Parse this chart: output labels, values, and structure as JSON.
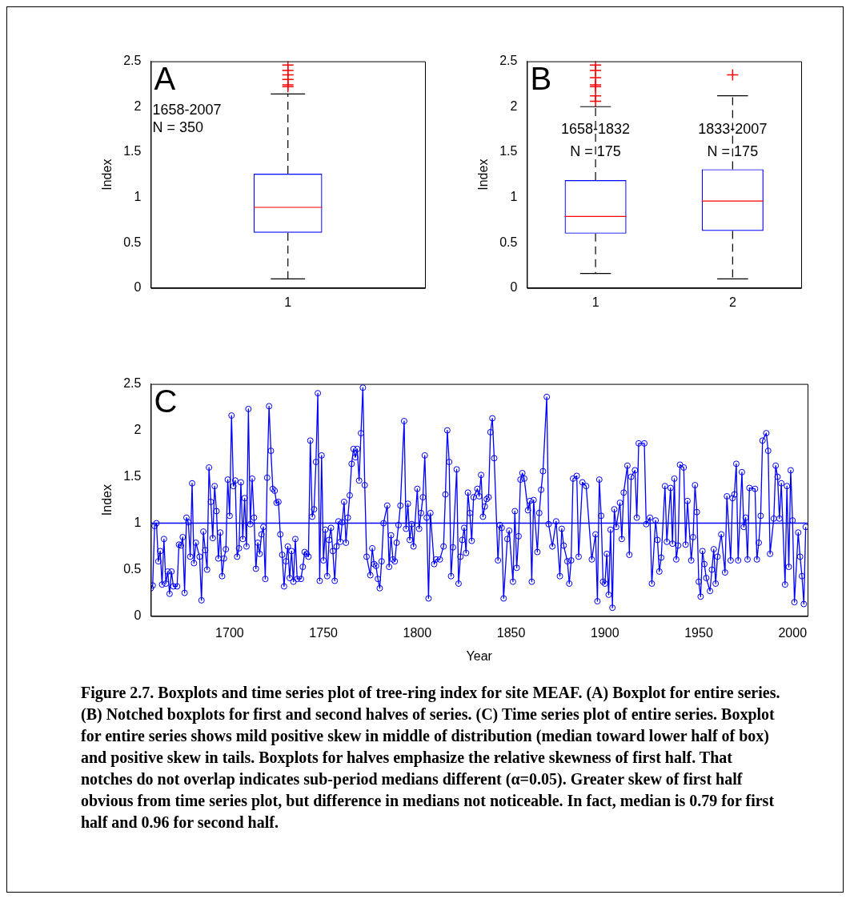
{
  "chart_data": [
    {
      "type": "box",
      "categories": [
        "1"
      ],
      "ylabel": "Index",
      "ylim": [
        0,
        2.5
      ],
      "yticks": [
        0,
        0.5,
        1,
        1.5,
        2,
        2.5
      ],
      "annotations": [
        "A",
        "1658-2007",
        "N = 350"
      ],
      "series": [
        {
          "color": "#0000ff",
          "boxes": [
            {
              "low": 0.1,
              "q1": 0.61,
              "median": 0.89,
              "q3": 1.26,
              "high": 2.14,
              "outliers": [
                2.22,
                2.24,
                2.3,
                2.35,
                2.4,
                2.46
              ]
            }
          ]
        }
      ]
    },
    {
      "type": "box",
      "categories": [
        "1",
        "2"
      ],
      "ylabel": "Index",
      "ylim": [
        0,
        2.5
      ],
      "yticks": [
        0,
        0.5,
        1,
        1.5,
        2,
        2.5
      ],
      "annotations": [
        "B",
        {
          "text": "1658-1832",
          "x": "1",
          "y": 1.75
        },
        {
          "text": "N = 175",
          "x": "1",
          "y": 1.5
        },
        {
          "text": "1833-2007",
          "x": "2",
          "y": 1.75
        },
        {
          "text": "N = 175",
          "x": "2",
          "y": 1.5
        }
      ],
      "series": [
        {
          "color": "#0000ff",
          "boxes": [
            {
              "low": 0.16,
              "q1": 0.6,
              "median": 0.79,
              "q3": 1.19,
              "high": 2.0,
              "outliers": [
                2.06,
                2.12,
                2.22,
                2.24,
                2.32,
                2.4,
                2.46
              ]
            },
            {
              "low": 0.1,
              "q1": 0.63,
              "median": 0.96,
              "q3": 1.31,
              "high": 2.12,
              "outliers": [
                2.35
              ]
            }
          ]
        }
      ]
    },
    {
      "type": "line",
      "xlabel": "Year",
      "ylabel": "Index",
      "xlim": [
        1658,
        2008
      ],
      "xticks": [
        1700,
        1750,
        1800,
        1850,
        1900,
        1950,
        2000
      ],
      "ylim": [
        0,
        2.5
      ],
      "yticks": [
        0,
        0.5,
        1,
        1.5,
        2,
        2.5
      ],
      "marker": "circle",
      "annotations": [
        "C"
      ],
      "ref_lines": [
        {
          "axis": "y",
          "value": 1,
          "color": "#0000ff"
        }
      ],
      "series": [
        {
          "color": "#0000ff",
          "x": [
            1658,
            1659,
            1660,
            1661,
            1662,
            1663,
            1664,
            1665,
            1666,
            1667,
            1668,
            1669,
            1670,
            1672,
            1673,
            1674,
            1675,
            1676,
            1677,
            1678,
            1679,
            1680,
            1681,
            1682,
            1684,
            1685,
            1686,
            1687,
            1688,
            1689,
            1690,
            1691,
            1692,
            1693,
            1694,
            1695,
            1696,
            1697,
            1698,
            1699,
            1700,
            1701,
            1702,
            1703,
            1704,
            1705,
            1706,
            1707,
            1708,
            1709,
            1710,
            1711,
            1712,
            1713,
            1714,
            1715,
            1716,
            1717,
            1718,
            1719,
            1720,
            1721,
            1722,
            1723,
            1724,
            1725,
            1726,
            1727,
            1728,
            1729,
            1730,
            1731,
            1732,
            1733,
            1734,
            1735,
            1736,
            1738,
            1739,
            1740,
            1741,
            1742,
            1743,
            1744,
            1745,
            1746,
            1747,
            1748,
            1749,
            1750,
            1751,
            1752,
            1753,
            1754,
            1755,
            1756,
            1757,
            1758,
            1759,
            1760,
            1761,
            1762,
            1763,
            1764,
            1765,
            1766,
            1767,
            1768,
            1769,
            1770,
            1771,
            1772,
            1773,
            1775,
            1776,
            1777,
            1778,
            1779,
            1780,
            1781,
            1782,
            1784,
            1785,
            1786,
            1787,
            1788,
            1789,
            1790,
            1791,
            1793,
            1794,
            1795,
            1796,
            1797,
            1798,
            1800,
            1801,
            1802,
            1803,
            1804,
            1805,
            1806,
            1807,
            1809,
            1810,
            1812,
            1814,
            1815,
            1816,
            1817,
            1818,
            1819,
            1821,
            1822,
            1823,
            1824,
            1825,
            1826,
            1827,
            1828,
            1829,
            1830,
            1832,
            1833,
            1834,
            1835,
            1836,
            1837,
            1838,
            1839,
            1840,
            1841,
            1843,
            1844,
            1845,
            1846,
            1848,
            1849,
            1851,
            1852,
            1853,
            1854,
            1855,
            1856,
            1857,
            1859,
            1860,
            1861,
            1862,
            1864,
            1865,
            1866,
            1867,
            1869,
            1870,
            1872,
            1874,
            1876,
            1877,
            1878,
            1880,
            1881,
            1882,
            1883,
            1885,
            1886,
            1888,
            1890,
            1893,
            1895,
            1896,
            1897,
            1898,
            1899,
            1900,
            1901,
            1902,
            1903,
            1904,
            1905,
            1906,
            1908,
            1909,
            1910,
            1912,
            1913,
            1914,
            1916,
            1917,
            1918,
            1921,
            1922,
            1924,
            1925,
            1927,
            1928,
            1929,
            1930,
            1932,
            1933,
            1935,
            1936,
            1937,
            1938,
            1939,
            1940,
            1942,
            1943,
            1944,
            1946,
            1947,
            1948,
            1949,
            1950,
            1951,
            1952,
            1953,
            1954,
            1956,
            1957,
            1958,
            1959,
            1960,
            1962,
            1964,
            1965,
            1967,
            1968,
            1969,
            1970,
            1971,
            1973,
            1974,
            1975,
            1976,
            1977,
            1980,
            1981,
            1982,
            1983,
            1984,
            1986,
            1987,
            1988,
            1990,
            1991,
            1992,
            1993,
            1994,
            1996,
            1997,
            1998,
            1999,
            2000,
            2001,
            2003,
            2004,
            2005,
            2006,
            2007
          ],
          "values": [
            0.3,
            0.33,
            0.97,
            1.0,
            0.59,
            0.7,
            0.34,
            0.83,
            0.35,
            0.48,
            0.24,
            0.48,
            0.32,
            0.32,
            0.77,
            0.76,
            0.85,
            0.25,
            1.06,
            1.01,
            0.64,
            1.43,
            0.57,
            0.79,
            0.64,
            0.17,
            0.91,
            0.71,
            0.5,
            1.6,
            1.23,
            0.84,
            1.4,
            1.13,
            0.62,
            0.9,
            0.43,
            0.62,
            0.72,
            1.47,
            1.08,
            2.16,
            1.4,
            1.46,
            0.64,
            0.73,
            1.44,
            0.83,
            1.27,
            0.75,
            2.23,
            0.99,
            1.48,
            1.06,
            0.51,
            0.79,
            0.67,
            0.88,
            0.96,
            0.4,
            1.49,
            2.26,
            1.78,
            1.37,
            1.35,
            1.22,
            1.23,
            0.88,
            0.66,
            0.32,
            0.59,
            0.75,
            0.41,
            0.7,
            0.37,
            0.83,
            0.4,
            0.4,
            0.53,
            0.69,
            0.67,
            0.64,
            1.89,
            1.07,
            1.15,
            1.66,
            2.4,
            0.38,
            1.73,
            0.6,
            0.93,
            0.43,
            0.82,
            0.95,
            0.7,
            0.38,
            0.75,
            1.02,
            0.8,
            1.01,
            1.23,
            0.79,
            1.06,
            1.3,
            1.64,
            1.8,
            1.71,
            1.8,
            1.46,
            1.97,
            2.46,
            1.41,
            0.64,
            0.44,
            0.73,
            0.56,
            0.54,
            0.4,
            0.3,
            0.59,
            1.0,
            1.19,
            0.53,
            0.87,
            0.61,
            0.59,
            0.79,
            0.98,
            1.19,
            2.1,
            0.94,
            1.21,
            0.82,
            0.99,
            0.75,
            1.37,
            0.94,
            1.11,
            1.28,
            1.73,
            1.06,
            0.19,
            1.11,
            0.56,
            0.61,
            0.61,
            0.75,
            1.31,
            2.0,
            1.66,
            0.43,
            0.74,
            1.58,
            0.35,
            0.64,
            0.82,
            0.95,
            0.68,
            1.33,
            1.11,
            0.81,
            1.28,
            1.37,
            1.29,
            1.52,
            1.07,
            1.18,
            1.26,
            1.28,
            1.98,
            2.13,
            1.7,
            0.6,
            0.98,
            0.95,
            0.19,
            0.83,
            0.92,
            0.37,
            1.13,
            0.52,
            0.86,
            1.47,
            1.54,
            1.48,
            1.14,
            1.24,
            0.37,
            1.25,
            0.69,
            1.11,
            1.36,
            1.56,
            2.36,
            0.99,
            0.75,
            1.02,
            0.43,
            0.94,
            0.76,
            0.59,
            0.35,
            0.6,
            1.48,
            1.51,
            0.64,
            1.44,
            1.4,
            0.61,
            0.88,
            0.16,
            1.47,
            1.08,
            0.37,
            0.35,
            0.67,
            0.23,
            0.93,
            0.09,
            1.15,
            0.96,
            1.22,
            0.83,
            1.33,
            1.62,
            0.66,
            1.5,
            1.57,
            1.06,
            1.86,
            1.86,
            0.99,
            1.06,
            0.35,
            1.03,
            0.82,
            0.48,
            0.63,
            1.4,
            0.8,
            1.38,
            0.78,
            1.48,
            0.61,
            0.76,
            1.63,
            1.6,
            0.77,
            1.24,
            0.6,
            0.85,
            1.41,
            1.12,
            0.37,
            0.21,
            0.7,
            0.56,
            0.41,
            0.27,
            0.5,
            0.72,
            0.35,
            0.64,
            0.88,
            0.47,
            1.29,
            0.6,
            1.27,
            1.31,
            1.64,
            0.6,
            1.55,
            0.96,
            1.06,
            0.61,
            1.38,
            1.37,
            0.61,
            0.79,
            1.08,
            1.89,
            1.97,
            1.78,
            0.67,
            1.05,
            1.62,
            1.5,
            1.05,
            1.43,
            0.34,
            1.4,
            0.53,
            1.57,
            1.03,
            0.15,
            0.9,
            0.64,
            0.43,
            0.13,
            0.96
          ]
        }
      ]
    },
    {
      "type": "other",
      "annotations": [
        "Figure 2.7. Boxplots and time series plot of tree-ring index for site MEAF. (A) Boxplot for entire series. (B) Notched boxplots for first and second halves of series. (C) Time series plot of entire series. Boxplot for entire series shows mild positive skew in middle of distribution (median toward lower half of box) and positive skew in tails. Boxplots for halves emphasize the relative skewness of first half. That notches do not overlap indicates sub-period medians different (α=0.05). Greater skew of first half obvious from time series plot, but difference in medians not noticeable. In fact, median is 0.79 for first half and 0.96 for second half."
      ]
    }
  ]
}
